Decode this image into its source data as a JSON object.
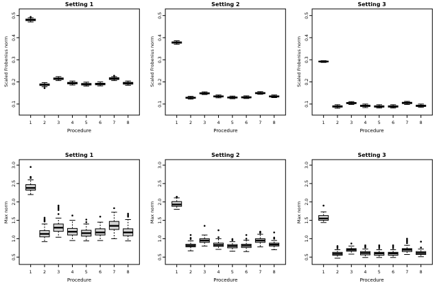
{
  "figure": {
    "background": "#ffffff",
    "line_color": "#000000",
    "box_fill": "#d3d3d3",
    "layout": {
      "rows": 2,
      "cols": 3
    }
  },
  "chart_data": [
    {
      "type": "boxplot",
      "title": "Setting 1",
      "xlabel": "Procedure",
      "ylabel": "Scaled Frobenius norm",
      "categories": [
        "1",
        "2",
        "3",
        "4",
        "5",
        "6",
        "7",
        "8"
      ],
      "ylim": [
        0.05,
        0.53
      ],
      "yticks": [
        0.1,
        0.2,
        0.3,
        0.4,
        0.5
      ],
      "ytick_labels": [
        "0.1",
        "0.2",
        "0.3",
        "0.4",
        "0.5"
      ],
      "grid": false,
      "boxes": [
        {
          "low": 0.471,
          "q1": 0.477,
          "median": 0.48,
          "q3": 0.484,
          "high": 0.49,
          "outliers": [
            0.494
          ]
        },
        {
          "low": 0.178,
          "q1": 0.184,
          "median": 0.187,
          "q3": 0.191,
          "high": 0.197,
          "outliers": [
            0.172
          ]
        },
        {
          "low": 0.206,
          "q1": 0.211,
          "median": 0.215,
          "q3": 0.218,
          "high": 0.224,
          "outliers": []
        },
        {
          "low": 0.186,
          "q1": 0.191,
          "median": 0.195,
          "q3": 0.198,
          "high": 0.204,
          "outliers": []
        },
        {
          "low": 0.181,
          "q1": 0.186,
          "median": 0.19,
          "q3": 0.193,
          "high": 0.199,
          "outliers": []
        },
        {
          "low": 0.182,
          "q1": 0.187,
          "median": 0.19,
          "q3": 0.194,
          "high": 0.2,
          "outliers": []
        },
        {
          "low": 0.206,
          "q1": 0.211,
          "median": 0.215,
          "q3": 0.219,
          "high": 0.224,
          "outliers": [
            0.228
          ]
        },
        {
          "low": 0.185,
          "q1": 0.19,
          "median": 0.194,
          "q3": 0.198,
          "high": 0.204,
          "outliers": []
        }
      ]
    },
    {
      "type": "boxplot",
      "title": "Setting 2",
      "xlabel": "Procedure",
      "ylabel": "Scaled Frobenius norm",
      "categories": [
        "1",
        "2",
        "3",
        "4",
        "5",
        "6",
        "7",
        "8"
      ],
      "ylim": [
        0.05,
        0.53
      ],
      "yticks": [
        0.1,
        0.2,
        0.3,
        0.4,
        0.5
      ],
      "ytick_labels": [
        "0.1",
        "0.2",
        "0.3",
        "0.4",
        "0.5"
      ],
      "grid": false,
      "boxes": [
        {
          "low": 0.37,
          "q1": 0.375,
          "median": 0.378,
          "q3": 0.381,
          "high": 0.386,
          "outliers": []
        },
        {
          "low": 0.122,
          "q1": 0.126,
          "median": 0.128,
          "q3": 0.131,
          "high": 0.135,
          "outliers": []
        },
        {
          "low": 0.143,
          "q1": 0.146,
          "median": 0.148,
          "q3": 0.151,
          "high": 0.155,
          "outliers": []
        },
        {
          "low": 0.128,
          "q1": 0.132,
          "median": 0.134,
          "q3": 0.137,
          "high": 0.141,
          "outliers": []
        },
        {
          "low": 0.124,
          "q1": 0.127,
          "median": 0.13,
          "q3": 0.132,
          "high": 0.136,
          "outliers": []
        },
        {
          "low": 0.125,
          "q1": 0.128,
          "median": 0.13,
          "q3": 0.133,
          "high": 0.137,
          "outliers": []
        },
        {
          "low": 0.144,
          "q1": 0.147,
          "median": 0.149,
          "q3": 0.152,
          "high": 0.156,
          "outliers": []
        },
        {
          "low": 0.129,
          "q1": 0.132,
          "median": 0.134,
          "q3": 0.137,
          "high": 0.141,
          "outliers": []
        }
      ]
    },
    {
      "type": "boxplot",
      "title": "Setting 3",
      "xlabel": "Procedure",
      "ylabel": "Scaled Frobenius norm",
      "categories": [
        "1",
        "2",
        "3",
        "4",
        "5",
        "6",
        "7",
        "8"
      ],
      "ylim": [
        0.05,
        0.53
      ],
      "yticks": [
        0.1,
        0.2,
        0.3,
        0.4,
        0.5
      ],
      "ytick_labels": [
        "0.1",
        "0.2",
        "0.3",
        "0.4",
        "0.5"
      ],
      "grid": false,
      "boxes": [
        {
          "low": 0.288,
          "q1": 0.291,
          "median": 0.292,
          "q3": 0.294,
          "high": 0.296,
          "outliers": []
        },
        {
          "low": 0.081,
          "q1": 0.086,
          "median": 0.089,
          "q3": 0.092,
          "high": 0.097,
          "outliers": []
        },
        {
          "low": 0.098,
          "q1": 0.102,
          "median": 0.104,
          "q3": 0.107,
          "high": 0.111,
          "outliers": []
        },
        {
          "low": 0.084,
          "q1": 0.089,
          "median": 0.092,
          "q3": 0.095,
          "high": 0.1,
          "outliers": []
        },
        {
          "low": 0.082,
          "q1": 0.086,
          "median": 0.089,
          "q3": 0.092,
          "high": 0.097,
          "outliers": []
        },
        {
          "low": 0.082,
          "q1": 0.086,
          "median": 0.089,
          "q3": 0.092,
          "high": 0.097,
          "outliers": []
        },
        {
          "low": 0.098,
          "q1": 0.102,
          "median": 0.105,
          "q3": 0.108,
          "high": 0.112,
          "outliers": []
        },
        {
          "low": 0.085,
          "q1": 0.089,
          "median": 0.092,
          "q3": 0.095,
          "high": 0.1,
          "outliers": []
        }
      ]
    },
    {
      "type": "boxplot",
      "title": "Setting 1",
      "xlabel": "Procedure",
      "ylabel": "Max norm",
      "categories": [
        "1",
        "2",
        "3",
        "4",
        "5",
        "6",
        "7",
        "8"
      ],
      "ylim": [
        0.3,
        3.15
      ],
      "yticks": [
        0.5,
        1.0,
        1.5,
        2.0,
        2.5,
        3.0
      ],
      "ytick_labels": [
        "0.5",
        "1.0",
        "1.5",
        "2.0",
        "2.5",
        "3.0"
      ],
      "grid": false,
      "boxes": [
        {
          "low": 2.2,
          "q1": 2.32,
          "median": 2.38,
          "q3": 2.47,
          "high": 2.6,
          "outliers": [
            2.65,
            2.68,
            2.95
          ]
        },
        {
          "low": 0.92,
          "q1": 1.05,
          "median": 1.13,
          "q3": 1.22,
          "high": 1.4,
          "outliers": [
            1.47,
            1.5,
            1.53,
            1.57
          ]
        },
        {
          "low": 1.04,
          "q1": 1.2,
          "median": 1.3,
          "q3": 1.4,
          "high": 1.56,
          "outliers": [
            1.67,
            1.78,
            1.82,
            1.86,
            1.9
          ]
        },
        {
          "low": 0.95,
          "q1": 1.1,
          "median": 1.19,
          "q3": 1.28,
          "high": 1.5,
          "outliers": [
            1.63
          ]
        },
        {
          "low": 0.94,
          "q1": 1.07,
          "median": 1.15,
          "q3": 1.23,
          "high": 1.4,
          "outliers": [
            1.45,
            1.52
          ]
        },
        {
          "low": 0.95,
          "q1": 1.1,
          "median": 1.17,
          "q3": 1.27,
          "high": 1.45,
          "outliers": [
            1.6
          ]
        },
        {
          "low": 1.0,
          "q1": 1.25,
          "median": 1.35,
          "q3": 1.47,
          "high": 1.72,
          "outliers": [
            1.83
          ]
        },
        {
          "low": 0.94,
          "q1": 1.08,
          "median": 1.17,
          "q3": 1.27,
          "high": 1.52,
          "outliers": [
            1.6,
            1.64,
            1.68
          ]
        }
      ]
    },
    {
      "type": "boxplot",
      "title": "Setting 2",
      "xlabel": "Procedure",
      "ylabel": "Max norm",
      "categories": [
        "1",
        "2",
        "3",
        "4",
        "5",
        "6",
        "7",
        "8"
      ],
      "ylim": [
        0.3,
        3.15
      ],
      "yticks": [
        0.5,
        1.0,
        1.5,
        2.0,
        2.5,
        3.0
      ],
      "ytick_labels": [
        "0.5",
        "1.0",
        "1.5",
        "2.0",
        "2.5",
        "3.0"
      ],
      "grid": false,
      "boxes": [
        {
          "low": 1.8,
          "q1": 1.88,
          "median": 1.93,
          "q3": 2.01,
          "high": 2.11,
          "outliers": [
            2.14
          ]
        },
        {
          "low": 0.67,
          "q1": 0.78,
          "median": 0.81,
          "q3": 0.85,
          "high": 0.94,
          "outliers": [
            0.99,
            1.02,
            1.1
          ]
        },
        {
          "low": 0.8,
          "q1": 0.9,
          "median": 0.95,
          "q3": 1.0,
          "high": 1.1,
          "outliers": [
            1.35
          ]
        },
        {
          "low": 0.71,
          "q1": 0.79,
          "median": 0.83,
          "q3": 0.88,
          "high": 1.0,
          "outliers": [
            1.04,
            1.23
          ]
        },
        {
          "low": 0.66,
          "q1": 0.75,
          "median": 0.8,
          "q3": 0.84,
          "high": 0.92,
          "outliers": [
            0.96,
            0.99
          ]
        },
        {
          "low": 0.65,
          "q1": 0.76,
          "median": 0.81,
          "q3": 0.85,
          "high": 0.96,
          "outliers": [
            1.0,
            1.1
          ]
        },
        {
          "low": 0.78,
          "q1": 0.9,
          "median": 0.95,
          "q3": 1.0,
          "high": 1.12,
          "outliers": [
            1.16,
            1.19
          ]
        },
        {
          "low": 0.7,
          "q1": 0.8,
          "median": 0.84,
          "q3": 0.88,
          "high": 0.95,
          "outliers": [
            1.0,
            1.03,
            1.17
          ]
        }
      ]
    },
    {
      "type": "boxplot",
      "title": "Setting 3",
      "xlabel": "Procedure",
      "ylabel": "Max norm",
      "categories": [
        "1",
        "2",
        "3",
        "4",
        "5",
        "6",
        "7",
        "8"
      ],
      "ylim": [
        0.3,
        3.15
      ],
      "yticks": [
        0.5,
        1.0,
        1.5,
        2.0,
        2.5,
        3.0
      ],
      "ytick_labels": [
        "0.5",
        "1.0",
        "1.5",
        "2.0",
        "2.5",
        "3.0"
      ],
      "grid": false,
      "boxes": [
        {
          "low": 1.44,
          "q1": 1.5,
          "median": 1.55,
          "q3": 1.63,
          "high": 1.73,
          "outliers": [
            1.9
          ]
        },
        {
          "low": 0.47,
          "q1": 0.55,
          "median": 0.59,
          "q3": 0.63,
          "high": 0.7,
          "outliers": [
            0.74,
            0.77,
            0.8
          ]
        },
        {
          "low": 0.58,
          "q1": 0.66,
          "median": 0.7,
          "q3": 0.73,
          "high": 0.8,
          "outliers": [
            0.87
          ]
        },
        {
          "low": 0.49,
          "q1": 0.56,
          "median": 0.61,
          "q3": 0.65,
          "high": 0.72,
          "outliers": [
            0.76,
            0.79,
            0.82
          ]
        },
        {
          "low": 0.49,
          "q1": 0.55,
          "median": 0.6,
          "q3": 0.63,
          "high": 0.7,
          "outliers": [
            0.74,
            0.78,
            0.82
          ]
        },
        {
          "low": 0.49,
          "q1": 0.55,
          "median": 0.6,
          "q3": 0.63,
          "high": 0.7,
          "outliers": [
            0.74,
            0.78,
            0.82
          ]
        },
        {
          "low": 0.57,
          "q1": 0.65,
          "median": 0.7,
          "q3": 0.73,
          "high": 0.82,
          "outliers": [
            0.88,
            0.92,
            0.96,
            1.0
          ]
        },
        {
          "low": 0.51,
          "q1": 0.57,
          "median": 0.61,
          "q3": 0.65,
          "high": 0.72,
          "outliers": [
            0.76,
            0.92
          ]
        }
      ]
    }
  ]
}
